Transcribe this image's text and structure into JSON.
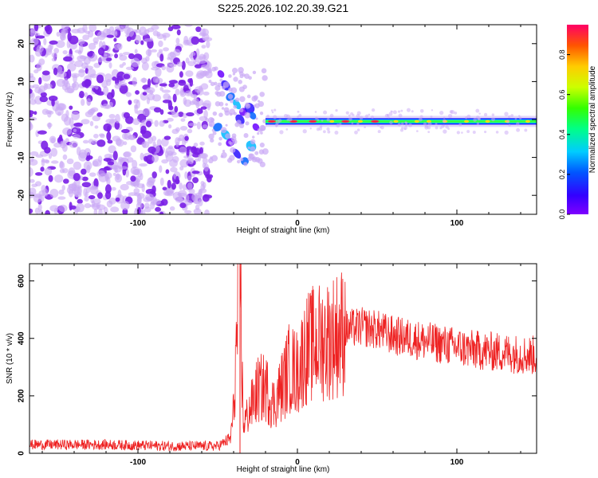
{
  "figure_title": "S225.2026.102.20.39.G21",
  "colors": {
    "snr_line": "#ee2222",
    "noise_purple": "#7a1fe6",
    "noise_light": "#c9a8f5",
    "colorbar": [
      "#7f00ff",
      "#3300ff",
      "#0044ff",
      "#00ccff",
      "#00ff88",
      "#33ff00",
      "#ccff00",
      "#ffcc00",
      "#ff5500",
      "#ff0066"
    ]
  },
  "chart_data": [
    {
      "type": "heatmap",
      "xlabel": "Height of straight line (km)",
      "ylabel": "Frequency (Hz)",
      "xlim": [
        -168,
        150
      ],
      "ylim": [
        -25,
        25
      ],
      "x_ticks": [
        -100,
        0,
        100
      ],
      "y_ticks": [
        -20,
        -10,
        0,
        10,
        20
      ],
      "colorbar": {
        "label": "Normalized spectral amplitude",
        "range": [
          0.0,
          0.95
        ],
        "ticks": [
          0.0,
          0.2,
          0.4,
          0.6,
          0.8
        ]
      },
      "regions": [
        {
          "description": "broadband noise",
          "x_range": [
            -168,
            -55
          ],
          "freq_range": [
            -25,
            25
          ],
          "amplitude": 0.1
        },
        {
          "description": "multipath",
          "x_range": [
            -55,
            -20
          ],
          "freq_range": [
            -12,
            14
          ],
          "amplitude": 0.2
        },
        {
          "description": "tone",
          "x_range": [
            -20,
            150
          ],
          "freq": -0.5,
          "amplitude": 0.9
        }
      ]
    },
    {
      "type": "line",
      "xlabel": "Height of straight line (km)",
      "ylabel": "SNR (10 * v/v)",
      "xlim": [
        -168,
        150
      ],
      "ylim": [
        0,
        660
      ],
      "x_ticks": [
        -100,
        0,
        100
      ],
      "y_ticks": [
        0,
        200,
        400,
        600
      ],
      "series": [
        {
          "x": [
            -168,
            -120,
            -80,
            -50,
            -42,
            -40,
            -38,
            -36,
            -34,
            -30,
            -25,
            -20,
            -15,
            -10,
            -5,
            0,
            5,
            10,
            20,
            30,
            40,
            50,
            60,
            70,
            80,
            90,
            100,
            110,
            120,
            130,
            140,
            150
          ],
          "y": [
            30,
            30,
            25,
            25,
            50,
            150,
            400,
            660,
            100,
            150,
            220,
            230,
            170,
            230,
            300,
            280,
            360,
            380,
            400,
            430,
            440,
            430,
            410,
            400,
            390,
            380,
            370,
            360,
            355,
            350,
            345,
            340
          ]
        }
      ]
    }
  ]
}
